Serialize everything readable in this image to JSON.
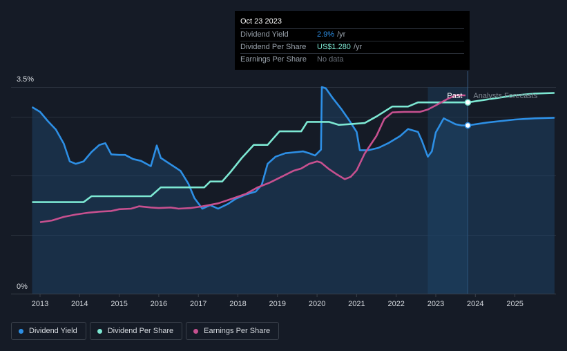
{
  "chart_data": {
    "type": "line",
    "y_axis": {
      "min_label": "0%",
      "max_label": "3.5%",
      "ylim": [
        0,
        3.5
      ]
    },
    "x_ticks": [
      "2013",
      "2014",
      "2015",
      "2016",
      "2017",
      "2018",
      "2019",
      "2020",
      "2021",
      "2022",
      "2023",
      "2024",
      "2025"
    ],
    "x_range": [
      2012.8,
      2026.0
    ],
    "past_label": "Past",
    "forecast_label": "Analysts Forecasts",
    "cutoff_x": 2023.81,
    "shade_start_x": 2022.8,
    "series": [
      {
        "name": "Dividend Yield",
        "color": "#2d8fe5",
        "points": [
          [
            2012.8,
            3.16
          ],
          [
            2013.0,
            3.08
          ],
          [
            2013.2,
            2.92
          ],
          [
            2013.4,
            2.78
          ],
          [
            2013.6,
            2.54
          ],
          [
            2013.75,
            2.24
          ],
          [
            2013.9,
            2.2
          ],
          [
            2014.1,
            2.24
          ],
          [
            2014.3,
            2.4
          ],
          [
            2014.5,
            2.52
          ],
          [
            2014.65,
            2.55
          ],
          [
            2014.8,
            2.36
          ],
          [
            2015.0,
            2.35
          ],
          [
            2015.15,
            2.35
          ],
          [
            2015.35,
            2.28
          ],
          [
            2015.55,
            2.25
          ],
          [
            2015.8,
            2.16
          ],
          [
            2015.95,
            2.51
          ],
          [
            2016.05,
            2.3
          ],
          [
            2016.3,
            2.19
          ],
          [
            2016.55,
            2.08
          ],
          [
            2016.75,
            1.86
          ],
          [
            2016.9,
            1.62
          ],
          [
            2017.1,
            1.44
          ],
          [
            2017.3,
            1.5
          ],
          [
            2017.5,
            1.44
          ],
          [
            2017.75,
            1.52
          ],
          [
            2017.95,
            1.61
          ],
          [
            2018.2,
            1.68
          ],
          [
            2018.45,
            1.73
          ],
          [
            2018.6,
            1.84
          ],
          [
            2018.75,
            2.2
          ],
          [
            2018.95,
            2.32
          ],
          [
            2019.2,
            2.38
          ],
          [
            2019.5,
            2.4
          ],
          [
            2019.65,
            2.41
          ],
          [
            2019.8,
            2.38
          ],
          [
            2019.95,
            2.34
          ],
          [
            2020.1,
            2.44
          ],
          [
            2020.12,
            3.5
          ],
          [
            2020.22,
            3.48
          ],
          [
            2020.4,
            3.31
          ],
          [
            2020.6,
            3.14
          ],
          [
            2020.8,
            2.95
          ],
          [
            2021.0,
            2.74
          ],
          [
            2021.08,
            2.43
          ],
          [
            2021.3,
            2.43
          ],
          [
            2021.55,
            2.47
          ],
          [
            2021.8,
            2.55
          ],
          [
            2022.1,
            2.67
          ],
          [
            2022.3,
            2.79
          ],
          [
            2022.55,
            2.74
          ],
          [
            2022.65,
            2.59
          ],
          [
            2022.8,
            2.32
          ],
          [
            2022.9,
            2.41
          ],
          [
            2023.0,
            2.73
          ],
          [
            2023.2,
            2.97
          ],
          [
            2023.35,
            2.92
          ],
          [
            2023.5,
            2.87
          ],
          [
            2023.65,
            2.85
          ],
          [
            2023.81,
            2.85
          ]
        ],
        "forecast": [
          [
            2023.81,
            2.85
          ],
          [
            2024.3,
            2.9
          ],
          [
            2025.0,
            2.95
          ],
          [
            2025.5,
            2.97
          ],
          [
            2026.0,
            2.98
          ]
        ]
      },
      {
        "name": "Dividend Per Share",
        "color": "#7de8d3",
        "points": [
          [
            2012.8,
            1.55
          ],
          [
            2014.1,
            1.55
          ],
          [
            2014.3,
            1.65
          ],
          [
            2015.8,
            1.65
          ],
          [
            2016.05,
            1.8
          ],
          [
            2017.15,
            1.8
          ],
          [
            2017.3,
            1.9
          ],
          [
            2017.6,
            1.9
          ],
          [
            2017.8,
            2.05
          ],
          [
            2018.1,
            2.3
          ],
          [
            2018.4,
            2.52
          ],
          [
            2018.75,
            2.52
          ],
          [
            2019.05,
            2.75
          ],
          [
            2019.6,
            2.75
          ],
          [
            2019.75,
            2.91
          ],
          [
            2020.3,
            2.91
          ],
          [
            2020.55,
            2.86
          ],
          [
            2020.8,
            2.87
          ],
          [
            2021.2,
            2.89
          ],
          [
            2021.5,
            3.0
          ],
          [
            2021.9,
            3.17
          ],
          [
            2022.3,
            3.17
          ],
          [
            2022.55,
            3.24
          ],
          [
            2023.81,
            3.24
          ]
        ],
        "forecast": [
          [
            2023.81,
            3.24
          ],
          [
            2024.4,
            3.3
          ],
          [
            2025.0,
            3.36
          ],
          [
            2025.5,
            3.39
          ],
          [
            2026.0,
            3.4
          ]
        ]
      },
      {
        "name": "Earnings Per Share",
        "color": "#c7508f",
        "points": [
          [
            2013.0,
            1.21
          ],
          [
            2013.3,
            1.24
          ],
          [
            2013.6,
            1.3
          ],
          [
            2013.9,
            1.34
          ],
          [
            2014.2,
            1.37
          ],
          [
            2014.5,
            1.39
          ],
          [
            2014.8,
            1.4
          ],
          [
            2015.0,
            1.43
          ],
          [
            2015.3,
            1.44
          ],
          [
            2015.5,
            1.48
          ],
          [
            2015.8,
            1.46
          ],
          [
            2016.0,
            1.45
          ],
          [
            2016.3,
            1.46
          ],
          [
            2016.5,
            1.44
          ],
          [
            2016.8,
            1.45
          ],
          [
            2017.1,
            1.48
          ],
          [
            2017.5,
            1.53
          ],
          [
            2017.9,
            1.62
          ],
          [
            2018.2,
            1.69
          ],
          [
            2018.5,
            1.8
          ],
          [
            2018.8,
            1.88
          ],
          [
            2019.1,
            1.98
          ],
          [
            2019.4,
            2.08
          ],
          [
            2019.6,
            2.12
          ],
          [
            2019.8,
            2.2
          ],
          [
            2020.0,
            2.24
          ],
          [
            2020.1,
            2.22
          ],
          [
            2020.3,
            2.11
          ],
          [
            2020.5,
            2.02
          ],
          [
            2020.7,
            1.94
          ],
          [
            2020.85,
            1.98
          ],
          [
            2021.0,
            2.09
          ],
          [
            2021.2,
            2.37
          ],
          [
            2021.5,
            2.67
          ],
          [
            2021.7,
            2.96
          ],
          [
            2021.9,
            3.07
          ],
          [
            2022.2,
            3.08
          ],
          [
            2022.6,
            3.08
          ],
          [
            2022.8,
            3.12
          ],
          [
            2023.0,
            3.19
          ],
          [
            2023.3,
            3.3
          ],
          [
            2023.5,
            3.36
          ],
          [
            2023.75,
            3.36
          ]
        ]
      }
    ],
    "legend": [
      "Dividend Yield",
      "Dividend Per Share",
      "Earnings Per Share"
    ]
  },
  "tooltip": {
    "date": "Oct 23 2023",
    "rows": [
      {
        "label": "Dividend Yield",
        "value": "2.9%",
        "unit": "/yr"
      },
      {
        "label": "Dividend Per Share",
        "value": "US$1.280",
        "unit": "/yr"
      },
      {
        "label": "Earnings Per Share",
        "value": "No data",
        "unit": ""
      }
    ]
  },
  "colors": {
    "background": "#151b26",
    "grid": "#2a313d",
    "shade": "#1b3a57"
  }
}
